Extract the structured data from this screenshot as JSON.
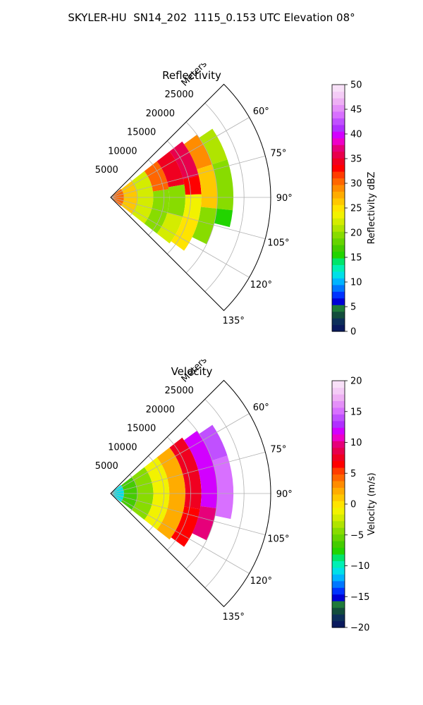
{
  "figure": {
    "title": "SKYLER-HU  SN14_202  1115_0.153 UTC Elevation 08°"
  },
  "chart_data": [
    {
      "type": "polar_sector",
      "title": "Reflectivity",
      "radial_label": "Meters",
      "theta_range_deg": [
        45,
        135
      ],
      "theta_ticks": [
        60,
        75,
        90,
        105,
        120,
        135
      ],
      "theta_tick_labels": [
        "60°",
        "75°",
        "90°",
        "105°",
        "120°",
        "135°"
      ],
      "r_ticks": [
        5000,
        10000,
        15000,
        20000,
        25000
      ],
      "r_tick_labels": [
        "5000",
        "10000",
        "15000",
        "20000",
        "25000"
      ],
      "r_max": 30000,
      "grid": true,
      "colorbar": {
        "label": "Reflectivity dBZ",
        "range": [
          0,
          50
        ],
        "ticks": [
          0,
          5,
          10,
          15,
          20,
          25,
          30,
          35,
          40,
          45,
          50
        ],
        "tick_labels": [
          "0",
          "5",
          "10",
          "15",
          "20",
          "25",
          "30",
          "35",
          "40",
          "45",
          "50"
        ],
        "colors": [
          "#0a1a5e",
          "#0d2f5a",
          "#134d3c",
          "#1f7a3a",
          "#0000d6",
          "#0033ff",
          "#0077ff",
          "#00b4ff",
          "#00e0e8",
          "#00f0b4",
          "#00e56a",
          "#22d400",
          "#44cc00",
          "#66d400",
          "#88dc00",
          "#b0e400",
          "#d4ec00",
          "#f2f200",
          "#ffe400",
          "#ffc800",
          "#ffac00",
          "#ff8c00",
          "#ff6600",
          "#ff3c00",
          "#ff0000",
          "#f00020",
          "#e8004c",
          "#e6007a",
          "#ee00c8",
          "#d200ff",
          "#b030ff",
          "#c050ff",
          "#d870ff",
          "#e490f8",
          "#eeb0f4",
          "#f4ccf6",
          "#f8e0f8"
        ]
      },
      "field_cells": [
        {
          "r": [
            0,
            2500
          ],
          "theta": [
            50,
            130
          ],
          "value": 30
        },
        {
          "r": [
            2500,
            5000
          ],
          "theta": [
            52,
            128
          ],
          "value": 26
        },
        {
          "r": [
            5000,
            8000
          ],
          "theta": [
            52,
            128
          ],
          "value": 22
        },
        {
          "r": [
            8000,
            11000
          ],
          "theta": [
            52,
            82
          ],
          "value": 31
        },
        {
          "r": [
            8000,
            11000
          ],
          "theta": [
            82,
            128
          ],
          "value": 20
        },
        {
          "r": [
            11000,
            14000
          ],
          "theta": [
            52,
            80
          ],
          "value": 35
        },
        {
          "r": [
            11000,
            14000
          ],
          "theta": [
            80,
            105
          ],
          "value": 20
        },
        {
          "r": [
            11000,
            14000
          ],
          "theta": [
            105,
            128
          ],
          "value": 22
        },
        {
          "r": [
            14000,
            17000
          ],
          "theta": [
            52,
            76
          ],
          "value": 36
        },
        {
          "r": [
            14000,
            17000
          ],
          "theta": [
            76,
            88
          ],
          "value": 33
        },
        {
          "r": [
            14000,
            17000
          ],
          "theta": [
            88,
            104
          ],
          "value": 24
        },
        {
          "r": [
            14000,
            17000
          ],
          "theta": [
            104,
            126
          ],
          "value": 25
        },
        {
          "r": [
            17000,
            20000
          ],
          "theta": [
            54,
            72
          ],
          "value": 29
        },
        {
          "r": [
            17000,
            20000
          ],
          "theta": [
            72,
            96
          ],
          "value": 27
        },
        {
          "r": [
            17000,
            20000
          ],
          "theta": [
            96,
            116
          ],
          "value": 20
        },
        {
          "r": [
            20000,
            23000
          ],
          "theta": [
            56,
            72
          ],
          "value": 21
        },
        {
          "r": [
            20000,
            23000
          ],
          "theta": [
            72,
            96
          ],
          "value": 20
        },
        {
          "r": [
            20000,
            23000
          ],
          "theta": [
            96,
            104
          ],
          "value": 16
        }
      ]
    },
    {
      "type": "polar_sector",
      "title": "Velocity",
      "radial_label": "Meters",
      "theta_range_deg": [
        45,
        135
      ],
      "theta_ticks": [
        60,
        75,
        90,
        105,
        120,
        135
      ],
      "theta_tick_labels": [
        "60°",
        "75°",
        "90°",
        "105°",
        "120°",
        "135°"
      ],
      "r_ticks": [
        5000,
        10000,
        15000,
        20000,
        25000
      ],
      "r_tick_labels": [
        "5000",
        "10000",
        "15000",
        "20000",
        "25000"
      ],
      "r_max": 30000,
      "grid": true,
      "colorbar": {
        "label": "Velocity (m/s)",
        "range": [
          -20,
          20
        ],
        "ticks": [
          -20,
          -15,
          -10,
          -5,
          0,
          5,
          10,
          15,
          20
        ],
        "tick_labels": [
          "−20",
          "−15",
          "−10",
          "−5",
          "0",
          "5",
          "10",
          "15",
          "20"
        ],
        "colors": [
          "#0a1a5e",
          "#0d2f5a",
          "#134d3c",
          "#1f7a3a",
          "#0000d6",
          "#0033ff",
          "#0077ff",
          "#00b4ff",
          "#00e0e8",
          "#00f0b4",
          "#00e56a",
          "#22d400",
          "#44cc00",
          "#66d400",
          "#88dc00",
          "#b0e400",
          "#d4ec00",
          "#f2f200",
          "#ffe400",
          "#ffc800",
          "#ffac00",
          "#ff8c00",
          "#ff6600",
          "#ff3c00",
          "#ff0000",
          "#f00020",
          "#e8004c",
          "#e6007a",
          "#ee00c8",
          "#d200ff",
          "#b030ff",
          "#c050ff",
          "#d870ff",
          "#e490f8",
          "#eeb0f4",
          "#f4ccf6",
          "#f8e0f8"
        ]
      },
      "field_cells": [
        {
          "r": [
            0,
            2500
          ],
          "theta": [
            50,
            130
          ],
          "value": -11
        },
        {
          "r": [
            2500,
            5000
          ],
          "theta": [
            52,
            128
          ],
          "value": -7
        },
        {
          "r": [
            5000,
            8000
          ],
          "theta": [
            52,
            128
          ],
          "value": -4
        },
        {
          "r": [
            8000,
            11000
          ],
          "theta": [
            52,
            128
          ],
          "value": -1
        },
        {
          "r": [
            11000,
            14000
          ],
          "theta": [
            52,
            128
          ],
          "value": 2
        },
        {
          "r": [
            14000,
            17000
          ],
          "theta": [
            52,
            100
          ],
          "value": 8
        },
        {
          "r": [
            14000,
            17000
          ],
          "theta": [
            100,
            126
          ],
          "value": 6
        },
        {
          "r": [
            17000,
            20000
          ],
          "theta": [
            54,
            98
          ],
          "value": 12
        },
        {
          "r": [
            17000,
            20000
          ],
          "theta": [
            98,
            116
          ],
          "value": 10
        },
        {
          "r": [
            20000,
            23000
          ],
          "theta": [
            56,
            72
          ],
          "value": 14
        },
        {
          "r": [
            20000,
            23000
          ],
          "theta": [
            72,
            102
          ],
          "value": 15
        }
      ]
    }
  ]
}
